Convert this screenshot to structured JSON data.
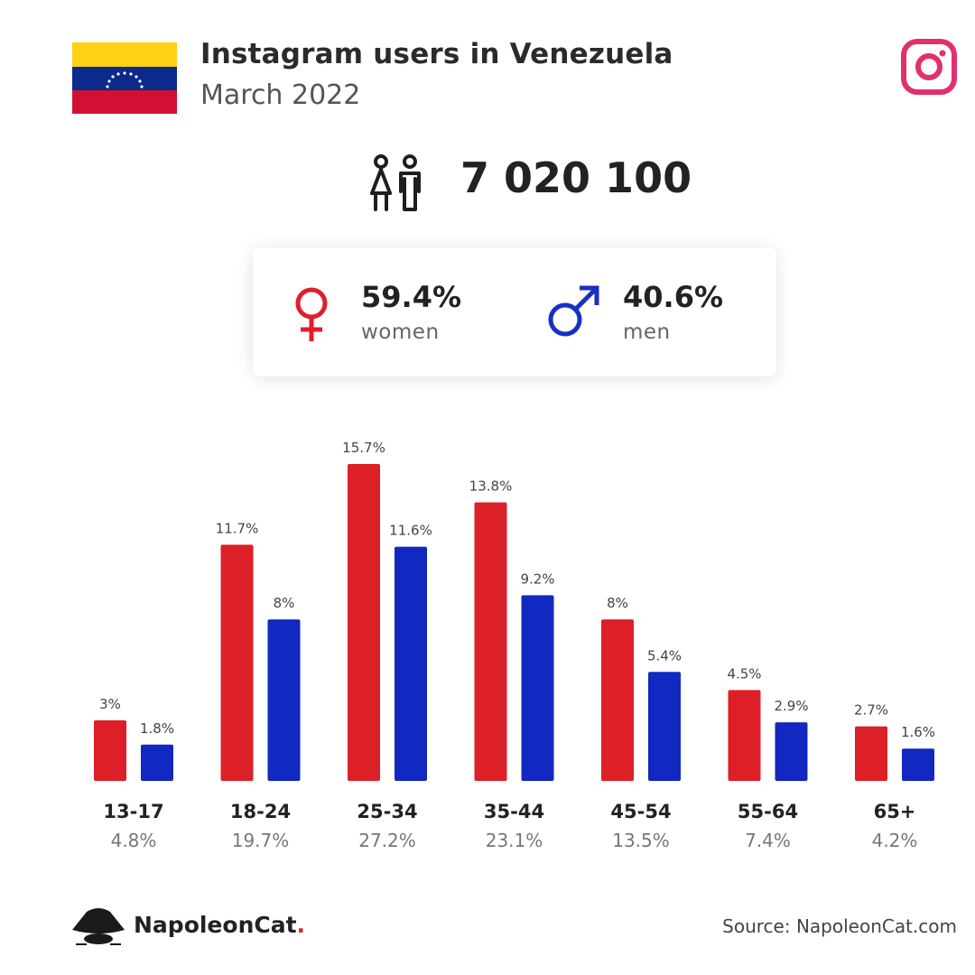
{
  "header": {
    "title": "Instagram users in Venezuela",
    "subtitle": "March 2022"
  },
  "total_users": "7 020 100",
  "gender": {
    "women": {
      "pct": "59.4%",
      "label": "women",
      "color": "#e01f2a"
    },
    "men": {
      "pct": "40.6%",
      "label": "men",
      "color": "#1a2fc4"
    }
  },
  "icons": {
    "flag": "venezuela-flag",
    "platform": "instagram-icon",
    "users": "users-icon",
    "women": "venus-icon",
    "men": "mars-icon",
    "brand": "napoleoncat-logo"
  },
  "colors": {
    "women": "#dd1f27",
    "men": "#1129c1",
    "instagram": "#e1306c"
  },
  "chart_data": {
    "type": "bar",
    "categories": [
      "13-17",
      "18-24",
      "25-34",
      "35-44",
      "45-54",
      "55-64",
      "65+"
    ],
    "category_totals": [
      "4.8%",
      "19.7%",
      "27.2%",
      "23.1%",
      "13.5%",
      "7.4%",
      "4.2%"
    ],
    "series": [
      {
        "name": "women",
        "values": [
          3,
          11.7,
          15.7,
          13.8,
          8,
          4.5,
          2.7
        ],
        "labels": [
          "3%",
          "11.7%",
          "15.7%",
          "13.8%",
          "8%",
          "4.5%",
          "2.7%"
        ]
      },
      {
        "name": "men",
        "values": [
          1.8,
          8,
          11.6,
          9.2,
          5.4,
          2.9,
          1.6
        ],
        "labels": [
          "1.8%",
          "8%",
          "11.6%",
          "9.2%",
          "5.4%",
          "2.9%",
          "1.6%"
        ]
      }
    ],
    "ylim": [
      0,
      15.7
    ],
    "grid": false,
    "legend": "none"
  },
  "footer": {
    "brand": "NapoleonCat",
    "brand_dot": ".",
    "source": "Source: NapoleonCat.com"
  }
}
